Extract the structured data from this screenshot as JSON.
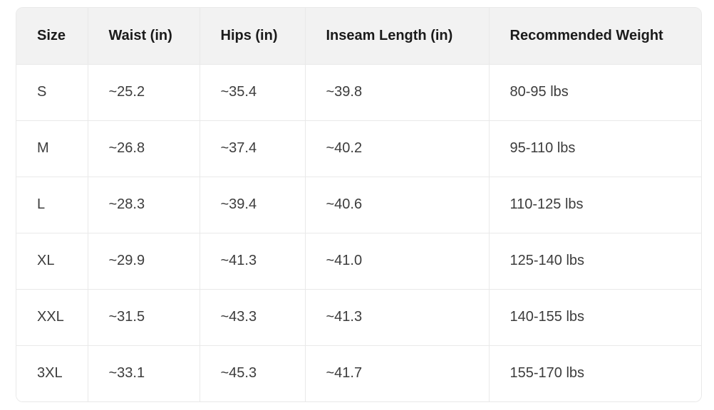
{
  "colors": {
    "page_bg": "#ffffff",
    "header_bg": "#f2f2f2",
    "border": "#e9e9e9",
    "header_text": "#1b1b1b",
    "body_text": "#3c3c3c"
  },
  "table": {
    "columns": {
      "size": "Size",
      "waist": "Waist (in)",
      "hips": "Hips (in)",
      "inseam": "Inseam Length (in)",
      "weight": "Recommended Weight"
    },
    "rows": [
      {
        "size": "S",
        "waist": "~25.2",
        "hips": "~35.4",
        "inseam": "~39.8",
        "weight": "80-95 lbs"
      },
      {
        "size": "M",
        "waist": "~26.8",
        "hips": "~37.4",
        "inseam": "~40.2",
        "weight": "95-110 lbs"
      },
      {
        "size": "L",
        "waist": "~28.3",
        "hips": "~39.4",
        "inseam": "~40.6",
        "weight": "110-125 lbs"
      },
      {
        "size": "XL",
        "waist": "~29.9",
        "hips": "~41.3",
        "inseam": "~41.0",
        "weight": "125-140 lbs"
      },
      {
        "size": "XXL",
        "waist": "~31.5",
        "hips": "~43.3",
        "inseam": "~41.3",
        "weight": "140-155 lbs"
      },
      {
        "size": "3XL",
        "waist": "~33.1",
        "hips": "~45.3",
        "inseam": "~41.7",
        "weight": "155-170 lbs"
      }
    ]
  },
  "chart_data": {
    "type": "table",
    "columns": [
      "Size",
      "Waist (in)",
      "Hips (in)",
      "Inseam Length (in)",
      "Recommended Weight"
    ],
    "rows": [
      [
        "S",
        "~25.2",
        "~35.4",
        "~39.8",
        "80-95 lbs"
      ],
      [
        "M",
        "~26.8",
        "~37.4",
        "~40.2",
        "95-110 lbs"
      ],
      [
        "L",
        "~28.3",
        "~39.4",
        "~40.6",
        "110-125 lbs"
      ],
      [
        "XL",
        "~29.9",
        "~41.3",
        "~41.0",
        "125-140 lbs"
      ],
      [
        "XXL",
        "~31.5",
        "~43.3",
        "~41.3",
        "140-155 lbs"
      ],
      [
        "3XL",
        "~33.1",
        "~45.3",
        "~41.7",
        "155-170 lbs"
      ]
    ],
    "waist_in": [
      25.2,
      26.8,
      28.3,
      29.9,
      31.5,
      33.1
    ],
    "hips_in": [
      35.4,
      37.4,
      39.4,
      41.3,
      43.3,
      45.3
    ],
    "inseam_in": [
      39.8,
      40.2,
      40.6,
      41.0,
      41.3,
      41.7
    ],
    "weight_lbs_ranges": [
      [
        80,
        95
      ],
      [
        95,
        110
      ],
      [
        110,
        125
      ],
      [
        125,
        140
      ],
      [
        140,
        155
      ],
      [
        155,
        170
      ]
    ]
  }
}
